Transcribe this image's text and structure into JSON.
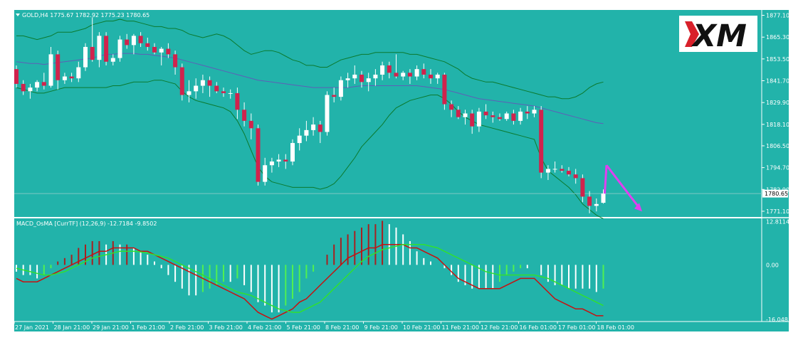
{
  "colors": {
    "background": "#22B3AA",
    "border": "#ffffff",
    "bull_candle": "#ffffff",
    "bear_candle": "#D0234D",
    "bollinger": "#0B7A2E",
    "moving_average": "#5E5EB8",
    "macd_up_bar": "#ffffff",
    "macd_down_bar_dark": "#A82020",
    "macd_osma_green": "#50F050",
    "macd_signal_red": "#C81010",
    "macd_main_green": "#30E030",
    "arrow": "#E040F0",
    "price_line": "#7FC8C4"
  },
  "main": {
    "symbol_label": "GOLD,H4  1775.67 1782.92 1775.23 1780.65",
    "current_price_label": "1780.65",
    "y_ticks": [
      "1877.10",
      "1865.30",
      "1853.50",
      "1841.70",
      "1829.90",
      "1818.10",
      "1806.50",
      "1794.70",
      "1782.90",
      "1771.10"
    ],
    "y_tick_values": [
      1877.1,
      1865.3,
      1853.5,
      1841.7,
      1829.9,
      1818.1,
      1806.5,
      1794.7,
      1782.9,
      1771.1
    ],
    "ylim": [
      1768.0,
      1880.0
    ],
    "logo_text": "XM"
  },
  "macd": {
    "label": "MACD_OsMA [CurrTF] (12,26,9) -12.7184 -9.8502",
    "y_ticks": [
      "12.8114",
      "0.00",
      "-16.048"
    ],
    "y_tick_values": [
      12.8114,
      0.0,
      -16.048
    ],
    "ylim": [
      -16.5,
      13.5
    ]
  },
  "x_ticks": [
    "27 Jan 2021",
    "28 Jan 21:00",
    "29 Jan 21:00",
    "1 Feb 21:00",
    "2 Feb 21:00",
    "3 Feb 21:00",
    "4 Feb 21:00",
    "5 Feb 21:00",
    "8 Feb 21:00",
    "9 Feb 21:00",
    "10 Feb 21:00",
    "11 Feb 21:00",
    "12 Feb 21:00",
    "16 Feb 01:00",
    "17 Feb 01:00",
    "18 Feb 01:00"
  ],
  "chart_data": {
    "type": "candlestick",
    "symbol": "GOLD",
    "timeframe": "H4",
    "candles": [
      [
        1848,
        1850,
        1838,
        1840
      ],
      [
        1840,
        1842,
        1834,
        1836
      ],
      [
        1836,
        1840,
        1832,
        1838
      ],
      [
        1838,
        1842,
        1836,
        1841
      ],
      [
        1841,
        1846,
        1837,
        1839
      ],
      [
        1839,
        1860,
        1838,
        1856
      ],
      [
        1856,
        1858,
        1837,
        1842
      ],
      [
        1842,
        1846,
        1840,
        1844
      ],
      [
        1844,
        1846,
        1841,
        1843
      ],
      [
        1843,
        1852,
        1841,
        1849
      ],
      [
        1849,
        1862,
        1847,
        1860
      ],
      [
        1860,
        1876,
        1852,
        1853
      ],
      [
        1853,
        1868,
        1849,
        1866
      ],
      [
        1866,
        1868,
        1850,
        1852
      ],
      [
        1852,
        1856,
        1850,
        1854
      ],
      [
        1854,
        1866,
        1852,
        1864
      ],
      [
        1864,
        1867,
        1859,
        1861
      ],
      [
        1861,
        1867,
        1856,
        1866
      ],
      [
        1866,
        1868,
        1860,
        1862
      ],
      [
        1862,
        1865,
        1858,
        1860
      ],
      [
        1860,
        1862,
        1856,
        1857
      ],
      [
        1857,
        1860,
        1850,
        1859
      ],
      [
        1859,
        1862,
        1854,
        1856
      ],
      [
        1856,
        1858,
        1845,
        1849
      ],
      [
        1849,
        1851,
        1831,
        1834
      ],
      [
        1834,
        1842,
        1830,
        1836
      ],
      [
        1836,
        1843,
        1832,
        1839
      ],
      [
        1839,
        1845,
        1835,
        1842
      ],
      [
        1842,
        1844,
        1833,
        1839
      ],
      [
        1839,
        1841,
        1835,
        1836
      ],
      [
        1836,
        1838,
        1833,
        1835
      ],
      [
        1835,
        1837,
        1832,
        1835
      ],
      [
        1835,
        1838,
        1821,
        1826
      ],
      [
        1826,
        1830,
        1817,
        1820
      ],
      [
        1820,
        1824,
        1810,
        1816
      ],
      [
        1816,
        1818,
        1785,
        1787
      ],
      [
        1787,
        1800,
        1785,
        1796
      ],
      [
        1796,
        1800,
        1792,
        1798
      ],
      [
        1798,
        1802,
        1795,
        1799
      ],
      [
        1799,
        1802,
        1794,
        1798
      ],
      [
        1798,
        1810,
        1796,
        1808
      ],
      [
        1808,
        1816,
        1804,
        1812
      ],
      [
        1812,
        1820,
        1809,
        1815
      ],
      [
        1815,
        1822,
        1812,
        1818
      ],
      [
        1818,
        1820,
        1808,
        1814
      ],
      [
        1814,
        1836,
        1812,
        1834
      ],
      [
        1834,
        1838,
        1830,
        1833
      ],
      [
        1833,
        1844,
        1831,
        1842
      ],
      [
        1842,
        1846,
        1838,
        1843
      ],
      [
        1843,
        1850,
        1840,
        1845
      ],
      [
        1845,
        1847,
        1838,
        1841
      ],
      [
        1841,
        1846,
        1836,
        1843
      ],
      [
        1843,
        1848,
        1839,
        1845
      ],
      [
        1845,
        1852,
        1842,
        1850
      ],
      [
        1850,
        1852,
        1843,
        1846
      ],
      [
        1846,
        1856,
        1843,
        1844
      ],
      [
        1844,
        1847,
        1842,
        1846
      ],
      [
        1846,
        1848,
        1840,
        1844
      ],
      [
        1844,
        1850,
        1842,
        1848
      ],
      [
        1848,
        1851,
        1843,
        1845
      ],
      [
        1845,
        1848,
        1840,
        1843
      ],
      [
        1843,
        1846,
        1840,
        1845
      ],
      [
        1845,
        1846,
        1826,
        1829
      ],
      [
        1829,
        1831,
        1822,
        1826
      ],
      [
        1826,
        1828,
        1821,
        1822
      ],
      [
        1822,
        1826,
        1818,
        1824
      ],
      [
        1824,
        1826,
        1813,
        1817
      ],
      [
        1817,
        1827,
        1814,
        1825
      ],
      [
        1825,
        1829,
        1821,
        1823
      ],
      [
        1823,
        1825,
        1819,
        1822
      ],
      [
        1822,
        1824,
        1820,
        1821
      ],
      [
        1821,
        1825,
        1820,
        1824
      ],
      [
        1824,
        1826,
        1818,
        1820
      ],
      [
        1820,
        1827,
        1818,
        1825
      ],
      [
        1825,
        1828,
        1821,
        1824
      ],
      [
        1824,
        1828,
        1822,
        1826
      ],
      [
        1826,
        1828,
        1789,
        1792
      ],
      [
        1792,
        1796,
        1788,
        1794
      ],
      [
        1794,
        1798,
        1792,
        1794
      ],
      [
        1794,
        1796,
        1792,
        1793
      ],
      [
        1793,
        1795,
        1790,
        1791
      ],
      [
        1791,
        1794,
        1786,
        1789
      ],
      [
        1789,
        1791,
        1776,
        1779
      ],
      [
        1779,
        1782,
        1770,
        1774
      ],
      [
        1774,
        1778,
        1771,
        1775
      ],
      [
        1775.67,
        1782.92,
        1775.23,
        1780.65
      ]
    ],
    "bollinger_upper": [
      1866,
      1866,
      1865,
      1864,
      1865,
      1866,
      1868,
      1868,
      1868,
      1869,
      1870,
      1872,
      1873,
      1874,
      1874,
      1875,
      1874,
      1874,
      1873,
      1872,
      1871,
      1871,
      1870,
      1870,
      1869,
      1867,
      1866,
      1865,
      1866,
      1867,
      1866,
      1864,
      1861,
      1858,
      1856,
      1857,
      1858,
      1858,
      1857,
      1855,
      1853,
      1852,
      1850,
      1850,
      1849,
      1849,
      1851,
      1853,
      1854,
      1855,
      1856,
      1856,
      1857,
      1857,
      1857,
      1857,
      1857,
      1856,
      1856,
      1855,
      1854,
      1853,
      1852,
      1850,
      1848,
      1845,
      1843,
      1842,
      1841,
      1841,
      1840,
      1839,
      1838,
      1837,
      1836,
      1835,
      1834,
      1833,
      1833,
      1832,
      1832,
      1833,
      1835,
      1838,
      1840,
      1841
    ],
    "bollinger_lower": [
      1838,
      1837,
      1836,
      1835,
      1835,
      1836,
      1837,
      1838,
      1838,
      1838,
      1838,
      1838,
      1838,
      1838,
      1839,
      1839,
      1840,
      1841,
      1841,
      1841,
      1842,
      1842,
      1841,
      1840,
      1836,
      1833,
      1831,
      1830,
      1829,
      1828,
      1827,
      1825,
      1820,
      1813,
      1804,
      1795,
      1790,
      1787,
      1786,
      1785,
      1784,
      1784,
      1784,
      1784,
      1783,
      1784,
      1786,
      1790,
      1795,
      1800,
      1806,
      1810,
      1814,
      1818,
      1823,
      1827,
      1829,
      1831,
      1832,
      1833,
      1834,
      1834,
      1832,
      1829,
      1825,
      1822,
      1820,
      1818,
      1817,
      1816,
      1815,
      1814,
      1813,
      1812,
      1811,
      1810,
      1800,
      1793,
      1790,
      1787,
      1784,
      1780,
      1775,
      1772,
      1769,
      1767
    ],
    "moving_average": [
      1852,
      1851.5,
      1851,
      1851,
      1850.5,
      1851,
      1851.5,
      1852,
      1852.5,
      1853,
      1853.5,
      1854,
      1855,
      1856,
      1856,
      1856.5,
      1856.5,
      1856.5,
      1856,
      1856,
      1855.5,
      1855,
      1854.5,
      1854,
      1853,
      1852,
      1851,
      1850,
      1849,
      1848,
      1847,
      1846,
      1845,
      1844,
      1843,
      1842,
      1841.5,
      1841,
      1840.5,
      1840,
      1839.5,
      1839,
      1838.5,
      1838,
      1838,
      1838,
      1838,
      1838,
      1838,
      1838.5,
      1839,
      1839,
      1839,
      1839,
      1839,
      1839,
      1839,
      1839,
      1839,
      1838.5,
      1838,
      1837.5,
      1837,
      1836,
      1835,
      1834,
      1833,
      1832,
      1831.5,
      1831,
      1830.5,
      1830,
      1829.5,
      1829,
      1828.5,
      1828,
      1827,
      1826,
      1825,
      1824,
      1823,
      1822,
      1821,
      1820,
      1819,
      1818.5
    ],
    "arrow_up_to": 1796,
    "arrow_down_to": 1771,
    "macd_histogram": [
      -2,
      -3,
      -3,
      -4,
      -3,
      -1,
      1,
      2,
      3,
      5,
      6,
      7,
      7,
      6,
      7,
      6,
      6,
      5,
      4,
      3,
      1,
      -1,
      -3,
      -5,
      -7,
      -9,
      -9,
      -8,
      -7,
      -6,
      -5,
      -5,
      -4,
      -6,
      -8,
      -11,
      -12,
      -14,
      -14,
      -12,
      -10,
      -8,
      -4,
      -2,
      0,
      3,
      6,
      8,
      9,
      10,
      11,
      12,
      12,
      13,
      12,
      11,
      9,
      7,
      4,
      2,
      1,
      0,
      -1,
      -3,
      -5,
      -6,
      -7,
      -7,
      -7,
      -7,
      -5,
      -3,
      -2,
      -1,
      -1,
      0,
      -3,
      -5,
      -6,
      -6,
      -7,
      -7,
      -7,
      -7,
      -8,
      -7
    ],
    "macd_signal_red": [
      -4,
      -5,
      -5,
      -5,
      -4,
      -3,
      -2,
      -1,
      0,
      1,
      2,
      3,
      4,
      4,
      5,
      5,
      5,
      5,
      4,
      4,
      3,
      2,
      1,
      0,
      -1,
      -2,
      -3,
      -4,
      -5,
      -6,
      -7,
      -8,
      -9,
      -10,
      -12,
      -14,
      -15,
      -16,
      -15,
      -14,
      -13,
      -11,
      -10,
      -8,
      -6,
      -4,
      -2,
      0,
      2,
      3,
      4,
      5,
      5,
      6,
      6,
      6,
      6,
      5,
      5,
      4,
      3,
      2,
      0,
      -2,
      -4,
      -5,
      -6,
      -7,
      -7,
      -7,
      -7,
      -6,
      -5,
      -4,
      -4,
      -4,
      -6,
      -8,
      -10,
      -11,
      -12,
      -13,
      -13,
      -14,
      -15,
      -15
    ],
    "macd_main_green": [
      -1,
      -1.5,
      -2,
      -2.5,
      -3,
      -3,
      -2.5,
      -2,
      -1,
      0,
      1,
      2,
      2.5,
      3,
      3.5,
      4,
      4,
      4,
      3.8,
      3.5,
      3,
      2.5,
      2,
      1,
      0,
      -1,
      -2,
      -3,
      -4,
      -5,
      -6,
      -7,
      -8,
      -8.5,
      -9,
      -10,
      -11,
      -12,
      -13,
      -13.5,
      -14,
      -14,
      -13,
      -12,
      -11,
      -9,
      -7,
      -5,
      -3,
      -1,
      1,
      2.5,
      3.5,
      4.5,
      5,
      5.5,
      6,
      6,
      6,
      6,
      5.5,
      5,
      4,
      3,
      2,
      1,
      0,
      -1,
      -2,
      -2.5,
      -3,
      -3,
      -3,
      -3,
      -3,
      -3,
      -3.5,
      -4,
      -5,
      -6,
      -7,
      -8,
      -9,
      -10,
      -11,
      -12
    ]
  }
}
